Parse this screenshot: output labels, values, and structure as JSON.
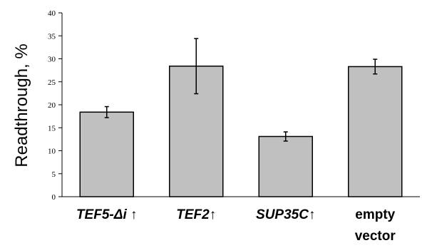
{
  "chart_data": {
    "type": "bar",
    "ylabel": "Readthrough, %",
    "xlabel": "",
    "ylim": [
      0,
      40
    ],
    "yticks": [
      0,
      5,
      10,
      15,
      20,
      25,
      30,
      35,
      40
    ],
    "grid": false,
    "categories": [
      {
        "name": "TEF5-Δi ↑",
        "lines": [
          "TEF5-Δi ↑"
        ],
        "italic": true
      },
      {
        "name": "TEF2↑",
        "lines": [
          "TEF2↑"
        ],
        "italic": true
      },
      {
        "name": "SUP35C↑",
        "lines": [
          "SUP35C↑"
        ],
        "italic": true
      },
      {
        "name": "empty vector",
        "lines": [
          "empty",
          "vector"
        ],
        "italic": false
      }
    ],
    "values": [
      18.4,
      28.4,
      13.1,
      28.3
    ],
    "errors": [
      1.2,
      6.0,
      1.0,
      1.6
    ],
    "colors": {
      "bar_fill": "#c0c0c0",
      "bar_stroke": "#000000",
      "axis": "#000000"
    }
  }
}
